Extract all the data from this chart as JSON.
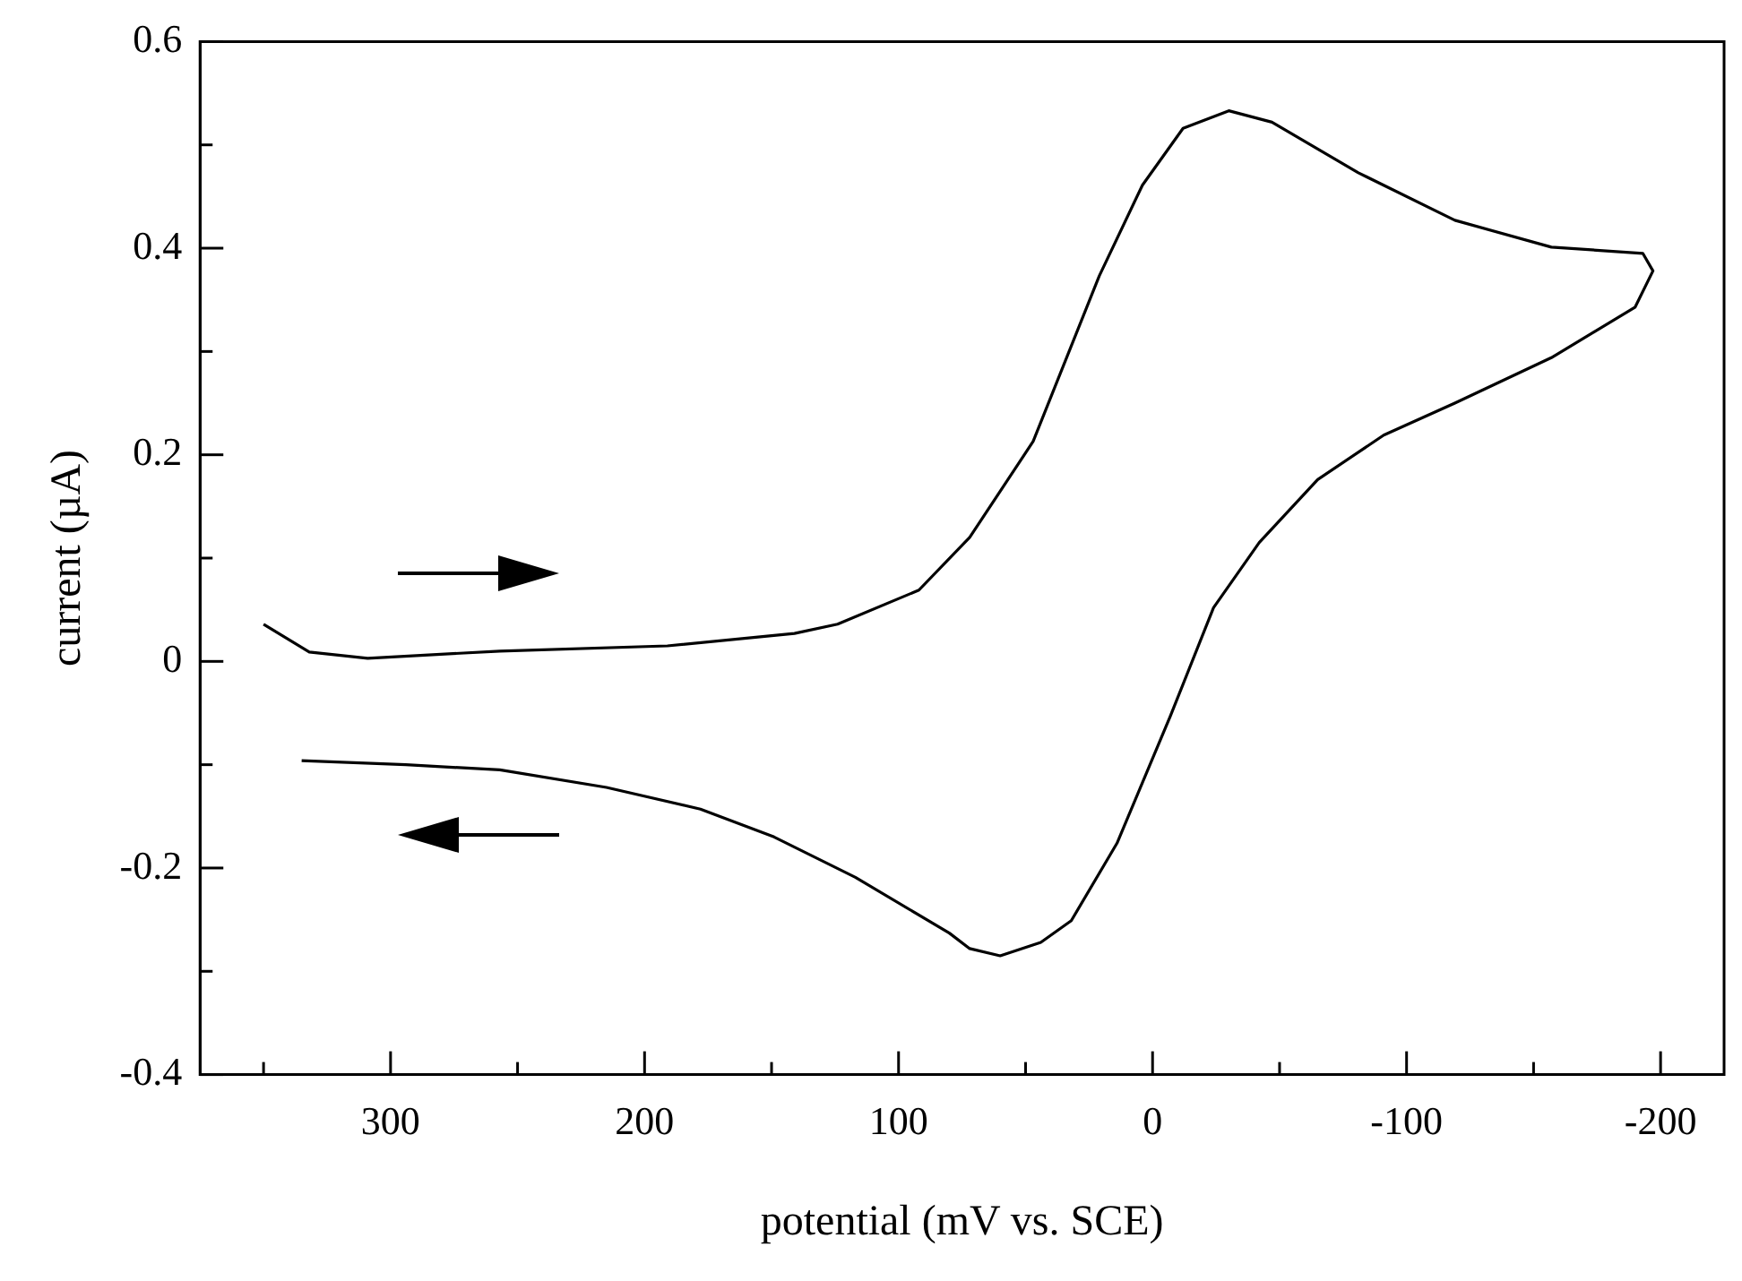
{
  "chart_data": {
    "type": "line",
    "xlabel": "potential (mV vs. SCE)",
    "ylabel": "current (µA)",
    "xlim": [
      375,
      -225
    ],
    "xticks": [
      {
        "value": 350,
        "label": null
      },
      300,
      {
        "value": 250,
        "label": null
      },
      200,
      {
        "value": 150,
        "label": null
      },
      100,
      {
        "value": 50,
        "label": null
      },
      0,
      {
        "value": -50,
        "label": null
      },
      -100,
      {
        "value": -150,
        "label": null
      },
      -200
    ],
    "ylim": [
      -0.4,
      0.6
    ],
    "yticks": [
      -0.4,
      {
        "value": -0.3,
        "label": null
      },
      -0.2,
      {
        "value": -0.1,
        "label": null
      },
      0,
      {
        "value": 0.1,
        "label": null
      },
      0.2,
      {
        "value": 0.3,
        "label": null
      },
      0.4,
      {
        "value": 0.5,
        "label": null
      },
      0.6
    ],
    "grid": false,
    "legend": false,
    "marker": "none",
    "line_style": "solid",
    "series": [
      {
        "color": "#000000",
        "x": [
          350,
          332,
          309,
          257,
          191,
          141,
          124,
          92,
          72,
          47,
          21,
          4,
          -12,
          -30,
          -47,
          -81,
          -119,
          -157,
          -193,
          -197,
          -190,
          -157,
          -119,
          -91,
          -65,
          -42,
          -24,
          -7,
          14,
          32,
          44,
          60,
          72,
          80,
          117,
          149,
          178,
          215,
          257,
          294,
          335
        ],
        "values": [
          0.036,
          0.009,
          0.003,
          0.01,
          0.015,
          0.027,
          0.036,
          0.069,
          0.12,
          0.213,
          0.373,
          0.461,
          0.516,
          0.533,
          0.522,
          0.473,
          0.427,
          0.401,
          0.395,
          0.378,
          0.343,
          0.294,
          0.25,
          0.219,
          0.176,
          0.115,
          0.052,
          -0.053,
          -0.176,
          -0.251,
          -0.272,
          -0.285,
          -0.278,
          -0.263,
          -0.209,
          -0.17,
          -0.143,
          -0.122,
          -0.105,
          -0.1,
          -0.096
        ]
      }
    ]
  }
}
